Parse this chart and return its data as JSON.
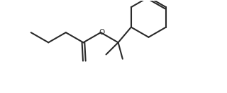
{
  "bg_color": "#ffffff",
  "line_color": "#2a2a2a",
  "line_width": 1.5,
  "figsize": [
    3.2,
    1.32
  ],
  "dpi": 100,
  "o_fontsize": 7.5
}
